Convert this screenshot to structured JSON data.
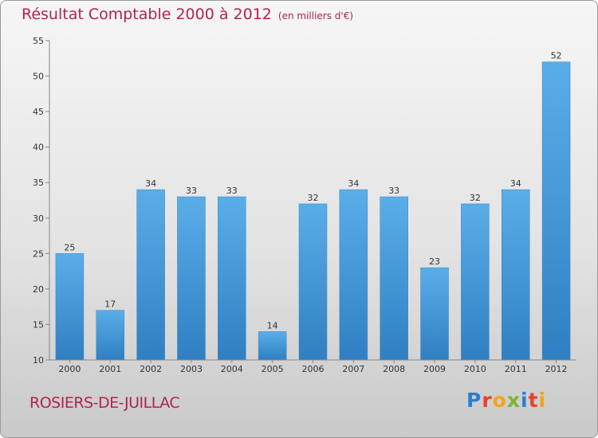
{
  "header": {
    "title": "Résultat Comptable 2000 à 2012",
    "unit": "(en milliers d'€)"
  },
  "footer": {
    "commune": "ROSIERS-DE-JUILLAC",
    "logo": "Proxiti"
  },
  "colors": {
    "title": "#b1244a",
    "bar_top": "#5aaee8",
    "bar_bottom": "#2f7fc2",
    "logo": [
      "#2a7fd0",
      "#e8412a",
      "#f3a21b",
      "#7ab52f"
    ]
  },
  "chart_data": {
    "type": "bar",
    "title": "Résultat Comptable 2000 à 2012",
    "subtitle": "(en milliers d'€)",
    "xlabel": "",
    "ylabel": "",
    "categories": [
      "2000",
      "2001",
      "2002",
      "2003",
      "2004",
      "2005",
      "2006",
      "2007",
      "2008",
      "2009",
      "2010",
      "2011",
      "2012"
    ],
    "values": [
      25,
      17,
      34,
      33,
      33,
      14,
      32,
      34,
      33,
      23,
      32,
      34,
      52
    ],
    "ylim": [
      10,
      55
    ],
    "yticks": [
      10,
      15,
      20,
      25,
      30,
      35,
      40,
      45,
      50,
      55
    ],
    "grid": false,
    "legend": "none"
  }
}
